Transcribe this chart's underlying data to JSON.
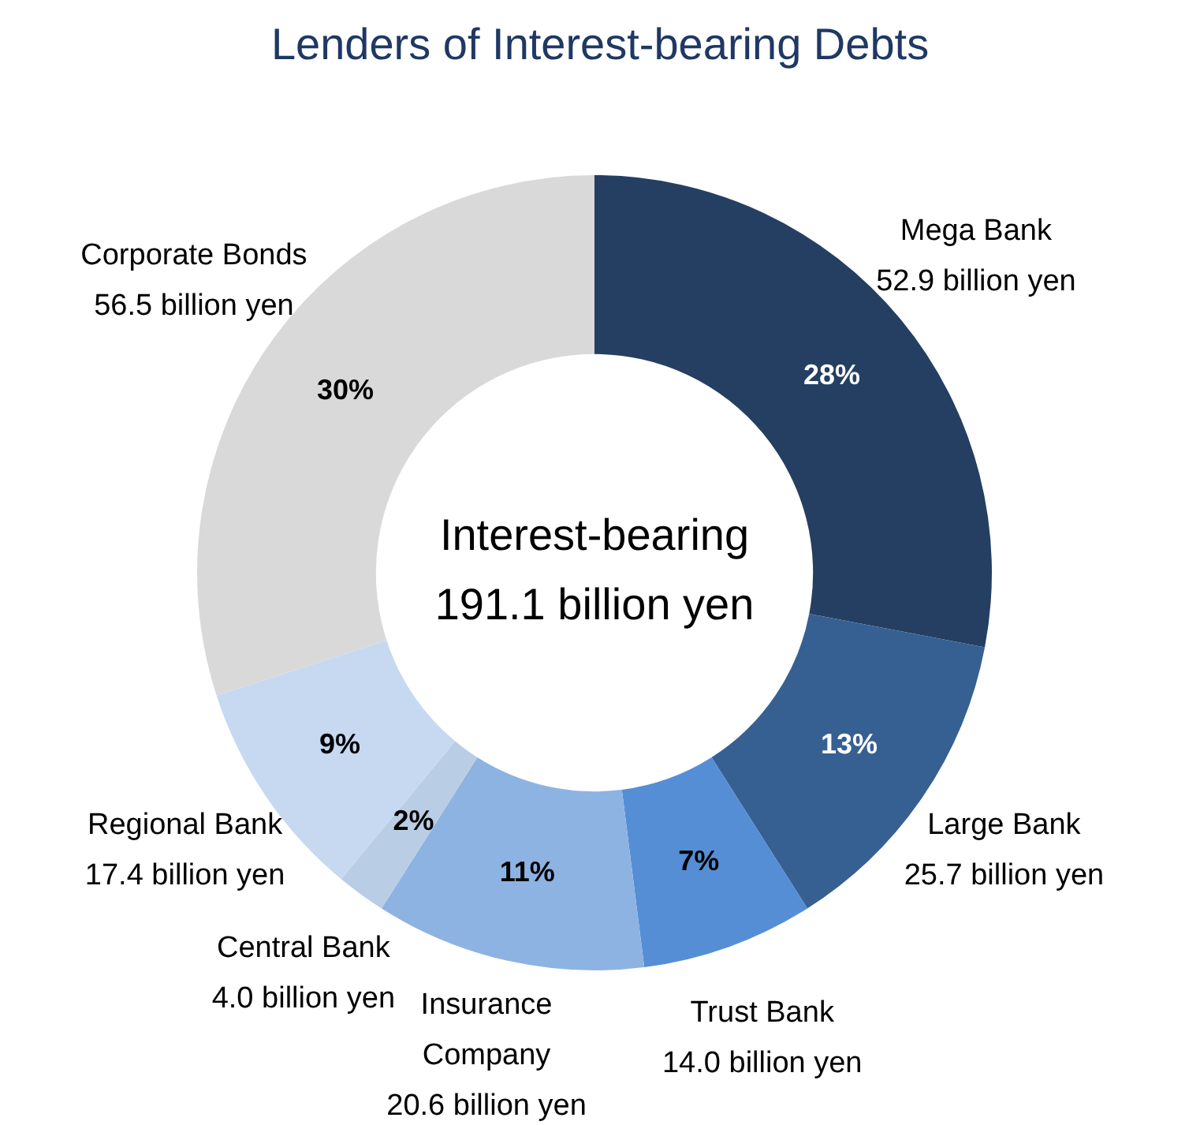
{
  "chart_data": {
    "type": "donut",
    "title": "Lenders of Interest-bearing Debts",
    "categories": [
      "Mega Bank\n52.9 billion yen",
      "Large Bank\n25.7 billion yen",
      "Trust Bank\n14.0 billion yen",
      "Insurance\nCompany\n20.6 billion yen",
      "Central Bank\n4.0 billion yen",
      "Regional Bank\n17.4 billion yen",
      "Corporate Bonds\n56.5 billion yen"
    ],
    "values": [
      28,
      13,
      7,
      11,
      2,
      9,
      30
    ],
    "colors": [
      "#243f61",
      "#366092",
      "#558ed5",
      "#8db3e2",
      "#b9cde5",
      "#c6d9f1",
      "#d9d9d9"
    ],
    "value_labels": [
      "28%",
      "13%",
      "7%",
      "11%",
      "2%",
      "9%",
      "30%"
    ],
    "annotations": [
      "Interest-bearing\n191.1 billion yen"
    ],
    "legend": false
  }
}
